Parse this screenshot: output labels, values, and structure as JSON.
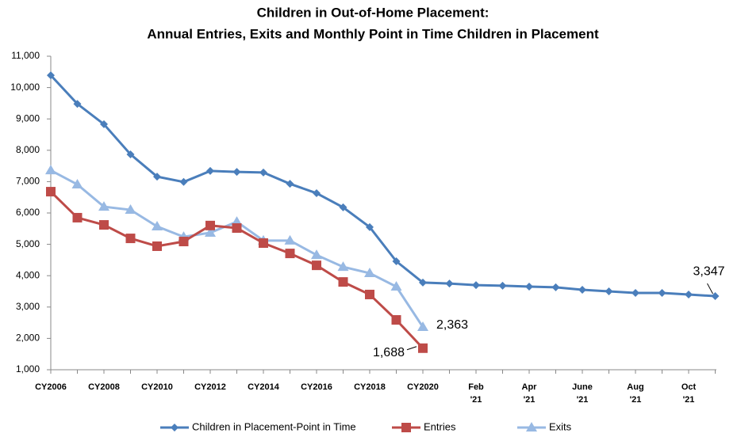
{
  "chart_data": {
    "type": "line",
    "title": [
      "Children in Out-of-Home Placement:",
      "Annual Entries, Exits and Monthly Point in Time Children in Placement"
    ],
    "categories": [
      "CY2006",
      null,
      "CY2008",
      null,
      "CY2010",
      null,
      "CY2012",
      null,
      "CY2014",
      null,
      "CY2016",
      null,
      "CY2018",
      null,
      "CY2020",
      null,
      "Feb '21",
      null,
      "Apr '21",
      null,
      "June '21",
      null,
      "Aug '21",
      null,
      "Oct '21",
      null
    ],
    "series": [
      {
        "name": "Children in Placement-Point in Time",
        "color": "#4a7ebb",
        "marker": "diamond",
        "values": [
          10390,
          9480,
          8830,
          7870,
          7160,
          6990,
          7340,
          7310,
          7290,
          6930,
          6630,
          6180,
          5550,
          4460,
          3780,
          3750,
          3700,
          3680,
          3650,
          3630,
          3550,
          3500,
          3450,
          3450,
          3400,
          3347
        ],
        "value_labels": [
          null,
          null,
          null,
          null,
          null,
          null,
          null,
          null,
          null,
          null,
          null,
          null,
          null,
          null,
          null,
          null,
          null,
          null,
          null,
          null,
          null,
          null,
          null,
          null,
          null,
          "3,347"
        ]
      },
      {
        "name": "Entries",
        "color": "#be4b48",
        "marker": "square",
        "values": [
          6680,
          5850,
          5620,
          5190,
          4940,
          5090,
          5600,
          5520,
          5040,
          4710,
          4330,
          3800,
          3400,
          2590,
          1688,
          null,
          null,
          null,
          null,
          null,
          null,
          null,
          null,
          null,
          null,
          null
        ],
        "value_labels": [
          null,
          null,
          null,
          null,
          null,
          null,
          null,
          null,
          null,
          null,
          null,
          null,
          null,
          null,
          "1,688",
          null,
          null,
          null,
          null,
          null,
          null,
          null,
          null,
          null,
          null,
          null
        ]
      },
      {
        "name": "Exits",
        "color": "#98b9e3",
        "marker": "triangle",
        "values": [
          7360,
          6910,
          6200,
          6100,
          5570,
          5240,
          5370,
          5720,
          5120,
          5120,
          4660,
          4280,
          4080,
          3650,
          2363,
          null,
          null,
          null,
          null,
          null,
          null,
          null,
          null,
          null,
          null,
          null
        ],
        "value_labels": [
          null,
          null,
          null,
          null,
          null,
          null,
          null,
          null,
          null,
          null,
          null,
          null,
          null,
          null,
          "2,363",
          null,
          null,
          null,
          null,
          null,
          null,
          null,
          null,
          null,
          null,
          null
        ]
      }
    ],
    "ylim": [
      1000,
      11000
    ],
    "yticks": [
      {
        "value": 1000,
        "label": "1,000"
      },
      {
        "value": 2000,
        "label": "2,000"
      },
      {
        "value": 3000,
        "label": "3,000"
      },
      {
        "value": 4000,
        "label": "4,000"
      },
      {
        "value": 5000,
        "label": "5,000"
      },
      {
        "value": 6000,
        "label": "6,000"
      },
      {
        "value": 7000,
        "label": "7,000"
      },
      {
        "value": 8000,
        "label": "8,000"
      },
      {
        "value": 9000,
        "label": "9,000"
      },
      {
        "value": 10000,
        "label": "10,000"
      },
      {
        "value": 11000,
        "label": "11,000"
      }
    ],
    "grid": false,
    "legend": "bottom"
  }
}
